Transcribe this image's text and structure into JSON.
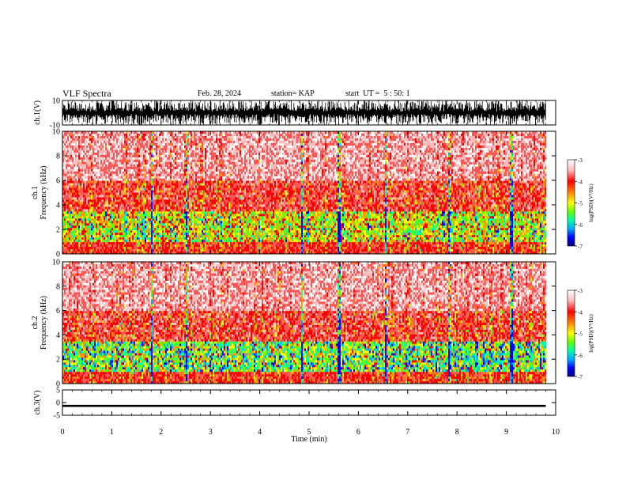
{
  "header": {
    "title": "VLF Spectra",
    "date": "Feb. 28, 2024",
    "station": "station= KAP",
    "start": "start  UT =  5 : 50: 1"
  },
  "colors": {
    "ink": "#000000",
    "background": "#ffffff",
    "colorscale": [
      "#000080",
      "#0000ff",
      "#00aaff",
      "#00ffcc",
      "#00ff00",
      "#aaff00",
      "#ffff00",
      "#ffaa00",
      "#ff0000",
      "#ff6666",
      "#ffcccc",
      "#ffffff"
    ]
  },
  "chart_data": [
    {
      "type": "line",
      "panel": "ch1-waveform",
      "ylabel": "ch.1(V)",
      "ylim": [
        -10,
        10
      ],
      "yticks": [
        "10",
        "-10"
      ],
      "xlim": [
        0,
        10
      ],
      "description_of_values": "saturated broadband noise spanning full range -10 to 10 V throughout 0-9.8 min"
    },
    {
      "type": "heatmap",
      "panel": "ch1-spectrogram",
      "ylabel": "ch.1\nFrequency (kHz)",
      "ylabel_lines": [
        "ch.1",
        "Frequency (kHz)"
      ],
      "ylim": [
        0,
        10
      ],
      "yticks": [
        "0",
        "2",
        "4",
        "6",
        "8",
        "10"
      ],
      "xlim": [
        0,
        9.8
      ],
      "colorbar": {
        "label": "log(PSD)(V²/Hz)",
        "range": [
          -7,
          -3
        ],
        "ticks": [
          "-3",
          "-4",
          "-5",
          "-6",
          "-7"
        ]
      }
    },
    {
      "type": "heatmap",
      "panel": "ch2-spectrogram",
      "ylabel": "ch.2\nFrequency (kHz)",
      "ylabel_lines": [
        "ch.2",
        "Frequency (kHz)"
      ],
      "ylim": [
        0,
        10
      ],
      "yticks": [
        "0",
        "2",
        "4",
        "6",
        "8",
        "10"
      ],
      "xlim": [
        0,
        9.8
      ],
      "colorbar": {
        "label": "log(PSD)(V²/Hz)",
        "range": [
          -7,
          -3
        ],
        "ticks": [
          "-3",
          "-4",
          "-5",
          "-6",
          "-7"
        ]
      }
    },
    {
      "type": "line",
      "panel": "ch3-waveform",
      "ylabel": "ch.3(V)",
      "ylim": [
        -5,
        5
      ],
      "yticks": [
        "5",
        "0",
        "-5"
      ],
      "xlim": [
        0,
        10
      ],
      "description_of_values": "narrow band around -1.3 V (about -1.7 to -0.9 V) for 0-9.8 min"
    }
  ],
  "xaxis": {
    "label": "Time (min)",
    "ticks": [
      "0",
      "1",
      "2",
      "3",
      "4",
      "5",
      "6",
      "7",
      "8",
      "9",
      "10"
    ],
    "range": [
      0,
      10
    ]
  }
}
